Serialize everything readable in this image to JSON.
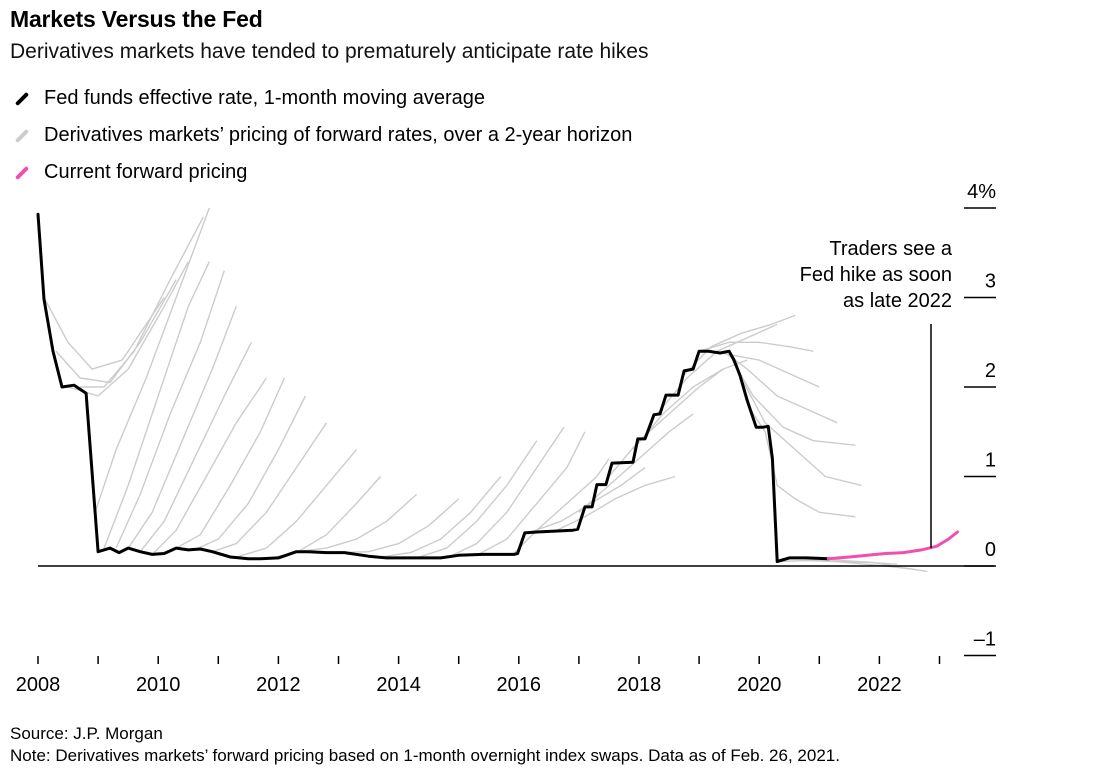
{
  "header": {
    "title": "Markets Versus the Fed",
    "subtitle": "Derivatives markets have tended to prematurely anticipate rate hikes"
  },
  "legend": [
    {
      "label": "Fed funds effective rate, 1-month moving average",
      "color": "#000000"
    },
    {
      "label": "Derivatives markets’ pricing of forward rates, over a 2-year horizon",
      "color": "#cccccc"
    },
    {
      "label": "Current forward pricing",
      "color": "#f04fb0"
    }
  ],
  "annotation": {
    "lines": [
      "Traders see a",
      "Fed hike as soon",
      "as late 2022"
    ]
  },
  "footer": {
    "source": "Source: J.P. Morgan",
    "note": "Note: Derivatives markets’ forward pricing based on 1-month overnight index swaps. Data as of Feb. 26, 2021."
  },
  "chart_data": {
    "type": "line",
    "title": "Markets Versus the Fed",
    "subtitle": "Derivatives markets have tended to prematurely anticipate rate hikes",
    "xlabel": "",
    "ylabel": "",
    "xlim": [
      2008.0,
      2023.9
    ],
    "ylim": [
      -1,
      4
    ],
    "y_ticks": [
      4,
      3,
      2,
      1,
      0,
      -1
    ],
    "y_tick_labels": [
      "4%",
      "3",
      "2",
      "1",
      "0",
      "–1"
    ],
    "x_tick_labels": [
      "2008",
      "2010",
      "2012",
      "2014",
      "2016",
      "2018",
      "2020",
      "2022"
    ],
    "x_tick_values": [
      2008,
      2010,
      2012,
      2014,
      2016,
      2018,
      2020,
      2022
    ],
    "grid": false,
    "legend_position": "top-left",
    "colors": {
      "fed": "#000000",
      "forward": "#cccccc",
      "current": "#f04fb0"
    },
    "series": [
      {
        "name": "Fed funds effective rate, 1-month moving average",
        "x": [
          2008.0,
          2008.1,
          2008.25,
          2008.4,
          2008.6,
          2008.8,
          2008.95,
          2009.0,
          2009.2,
          2009.35,
          2009.5,
          2009.7,
          2009.9,
          2010.1,
          2010.3,
          2010.5,
          2010.7,
          2010.9,
          2011.2,
          2011.5,
          2011.7,
          2012.0,
          2012.3,
          2012.5,
          2012.8,
          2013.1,
          2013.5,
          2013.8,
          2014.1,
          2014.4,
          2014.7,
          2015.0,
          2015.4,
          2015.7,
          2015.92,
          2015.98,
          2016.1,
          2016.3,
          2016.6,
          2016.9,
          2016.98,
          2017.1,
          2017.22,
          2017.3,
          2017.45,
          2017.55,
          2017.9,
          2017.98,
          2018.1,
          2018.25,
          2018.35,
          2018.45,
          2018.65,
          2018.75,
          2018.9,
          2019.0,
          2019.15,
          2019.35,
          2019.5,
          2019.58,
          2019.68,
          2019.8,
          2019.95,
          2020.05,
          2020.15,
          2020.22,
          2020.3,
          2020.5,
          2020.8,
          2021.15
        ],
        "values": [
          3.93,
          2.98,
          2.4,
          2.0,
          2.02,
          1.93,
          0.6,
          0.16,
          0.2,
          0.15,
          0.2,
          0.16,
          0.13,
          0.14,
          0.2,
          0.18,
          0.19,
          0.16,
          0.1,
          0.08,
          0.08,
          0.09,
          0.16,
          0.16,
          0.15,
          0.15,
          0.11,
          0.09,
          0.09,
          0.09,
          0.09,
          0.12,
          0.13,
          0.13,
          0.13,
          0.14,
          0.37,
          0.38,
          0.39,
          0.4,
          0.41,
          0.66,
          0.66,
          0.91,
          0.91,
          1.15,
          1.16,
          1.42,
          1.42,
          1.69,
          1.7,
          1.91,
          1.91,
          2.18,
          2.2,
          2.4,
          2.4,
          2.38,
          2.4,
          2.3,
          2.13,
          1.85,
          1.55,
          1.55,
          1.56,
          1.2,
          0.05,
          0.09,
          0.09,
          0.08
        ]
      },
      {
        "name": "Current forward pricing",
        "x": [
          2021.15,
          2021.5,
          2021.8,
          2022.1,
          2022.4,
          2022.7,
          2022.95,
          2023.15,
          2023.3
        ],
        "values": [
          0.08,
          0.1,
          0.12,
          0.14,
          0.15,
          0.18,
          0.22,
          0.3,
          0.38
        ]
      }
    ],
    "forward_curves": [
      {
        "start": 2008.1,
        "x": [
          2008.1,
          2008.5,
          2008.9,
          2009.4,
          2009.9,
          2010.1
        ],
        "values": [
          3.0,
          2.5,
          2.2,
          2.3,
          2.8,
          3.0
        ]
      },
      {
        "start": 2008.3,
        "x": [
          2008.3,
          2008.7,
          2009.2,
          2009.7,
          2010.3
        ],
        "values": [
          2.4,
          2.1,
          2.05,
          2.5,
          3.2
        ]
      },
      {
        "start": 2008.5,
        "x": [
          2008.5,
          2009.0,
          2009.5,
          2010.1,
          2010.5
        ],
        "values": [
          2.0,
          1.9,
          2.2,
          2.9,
          3.4
        ]
      },
      {
        "start": 2008.7,
        "x": [
          2008.7,
          2009.1,
          2009.6,
          2010.2,
          2010.75
        ],
        "values": [
          2.0,
          2.0,
          2.4,
          3.2,
          3.9
        ]
      },
      {
        "start": 2008.95,
        "x": [
          2008.95,
          2009.3,
          2009.8,
          2010.3,
          2010.85
        ],
        "values": [
          0.6,
          1.3,
          2.1,
          3.0,
          4.0
        ]
      },
      {
        "start": 2009.1,
        "x": [
          2009.1,
          2009.5,
          2010.0,
          2010.5,
          2010.85
        ],
        "values": [
          0.2,
          0.9,
          1.9,
          2.9,
          3.4
        ]
      },
      {
        "start": 2009.3,
        "x": [
          2009.3,
          2009.7,
          2010.2,
          2010.7,
          2011.1
        ],
        "values": [
          0.2,
          0.8,
          1.7,
          2.5,
          3.3
        ]
      },
      {
        "start": 2009.5,
        "x": [
          2009.5,
          2009.9,
          2010.4,
          2010.9,
          2011.3
        ],
        "values": [
          0.2,
          0.6,
          1.4,
          2.2,
          2.9
        ]
      },
      {
        "start": 2009.7,
        "x": [
          2009.7,
          2010.1,
          2010.6,
          2011.1,
          2011.55
        ],
        "values": [
          0.16,
          0.5,
          1.2,
          1.9,
          2.5
        ]
      },
      {
        "start": 2009.9,
        "x": [
          2009.9,
          2010.3,
          2010.8,
          2011.3,
          2011.8
        ],
        "values": [
          0.13,
          0.4,
          1.0,
          1.6,
          2.1
        ]
      },
      {
        "start": 2010.3,
        "x": [
          2010.3,
          2010.7,
          2011.2,
          2011.7,
          2012.1
        ],
        "values": [
          0.2,
          0.35,
          0.9,
          1.5,
          2.1
        ]
      },
      {
        "start": 2010.6,
        "x": [
          2010.6,
          2011.0,
          2011.5,
          2012.0,
          2012.45
        ],
        "values": [
          0.18,
          0.3,
          0.7,
          1.3,
          1.9
        ]
      },
      {
        "start": 2010.9,
        "x": [
          2010.9,
          2011.3,
          2011.8,
          2012.3,
          2012.8
        ],
        "values": [
          0.16,
          0.25,
          0.6,
          1.1,
          1.6
        ]
      },
      {
        "start": 2011.3,
        "x": [
          2011.3,
          2011.8,
          2012.3,
          2012.8,
          2013.3
        ],
        "values": [
          0.1,
          0.2,
          0.5,
          0.9,
          1.3
        ]
      },
      {
        "start": 2011.8,
        "x": [
          2011.8,
          2012.3,
          2012.8,
          2013.3,
          2013.7
        ],
        "values": [
          0.08,
          0.15,
          0.35,
          0.7,
          1.0
        ]
      },
      {
        "start": 2012.3,
        "x": [
          2012.3,
          2012.8,
          2013.3,
          2013.8,
          2014.3
        ],
        "values": [
          0.16,
          0.2,
          0.3,
          0.5,
          0.8
        ]
      },
      {
        "start": 2013.0,
        "x": [
          2013.0,
          2013.5,
          2014.0,
          2014.5,
          2015.0
        ],
        "values": [
          0.15,
          0.16,
          0.25,
          0.45,
          0.75
        ]
      },
      {
        "start": 2013.7,
        "x": [
          2013.7,
          2014.2,
          2014.7,
          2015.2,
          2015.7
        ],
        "values": [
          0.1,
          0.15,
          0.3,
          0.6,
          1.0
        ]
      },
      {
        "start": 2014.3,
        "x": [
          2014.3,
          2014.8,
          2015.3,
          2015.8,
          2016.3
        ],
        "values": [
          0.09,
          0.2,
          0.5,
          0.9,
          1.4
        ]
      },
      {
        "start": 2014.8,
        "x": [
          2014.8,
          2015.3,
          2015.8,
          2016.3,
          2016.75
        ],
        "values": [
          0.09,
          0.25,
          0.6,
          1.1,
          1.55
        ]
      },
      {
        "start": 2015.3,
        "x": [
          2015.3,
          2015.8,
          2016.3,
          2016.8,
          2017.1
        ],
        "values": [
          0.12,
          0.3,
          0.7,
          1.1,
          1.5
        ]
      },
      {
        "start": 2015.9,
        "x": [
          2015.9,
          2016.3,
          2016.8,
          2017.3,
          2017.5
        ],
        "values": [
          0.13,
          0.4,
          0.7,
          1.0,
          1.2
        ]
      },
      {
        "start": 2016.2,
        "x": [
          2016.2,
          2016.7,
          2017.2,
          2017.7,
          2018.1
        ],
        "values": [
          0.38,
          0.5,
          0.7,
          0.9,
          1.1
        ]
      },
      {
        "start": 2016.6,
        "x": [
          2016.6,
          2017.1,
          2017.6,
          2018.1,
          2018.6
        ],
        "values": [
          0.39,
          0.55,
          0.75,
          0.9,
          1.0
        ]
      },
      {
        "start": 2017.0,
        "x": [
          2017.0,
          2017.5,
          2018.0,
          2018.5,
          2018.9
        ],
        "values": [
          0.6,
          0.9,
          1.2,
          1.5,
          1.7
        ]
      },
      {
        "start": 2017.5,
        "x": [
          2017.5,
          2018.0,
          2018.5,
          2019.0,
          2019.4
        ],
        "values": [
          1.0,
          1.4,
          1.7,
          2.0,
          2.2
        ]
      },
      {
        "start": 2017.9,
        "x": [
          2017.9,
          2018.4,
          2018.9,
          2019.4,
          2019.8
        ],
        "values": [
          1.3,
          1.7,
          2.0,
          2.2,
          2.3
        ]
      },
      {
        "start": 2018.3,
        "x": [
          2018.3,
          2018.8,
          2019.3,
          2019.8,
          2020.3
        ],
        "values": [
          1.7,
          2.1,
          2.4,
          2.55,
          2.7
        ]
      },
      {
        "start": 2018.7,
        "x": [
          2018.7,
          2019.2,
          2019.7,
          2020.2,
          2020.6
        ],
        "values": [
          2.1,
          2.45,
          2.6,
          2.7,
          2.8
        ]
      },
      {
        "start": 2019.0,
        "x": [
          2019.0,
          2019.5,
          2020.0,
          2020.5,
          2020.9
        ],
        "values": [
          2.4,
          2.5,
          2.5,
          2.45,
          2.4
        ]
      },
      {
        "start": 2019.2,
        "x": [
          2019.2,
          2019.6,
          2020.0,
          2020.5,
          2021.0
        ],
        "values": [
          2.4,
          2.35,
          2.3,
          2.15,
          2.0
        ]
      },
      {
        "start": 2019.4,
        "x": [
          2019.4,
          2019.8,
          2020.3,
          2020.8,
          2021.3
        ],
        "values": [
          2.4,
          2.2,
          1.9,
          1.75,
          1.6
        ]
      },
      {
        "start": 2019.55,
        "x": [
          2019.55,
          2019.9,
          2020.4,
          2020.9,
          2021.6
        ],
        "values": [
          2.3,
          1.9,
          1.55,
          1.4,
          1.35
        ]
      },
      {
        "start": 2019.7,
        "x": [
          2019.7,
          2020.1,
          2020.6,
          2021.1,
          2021.7
        ],
        "values": [
          2.1,
          1.6,
          1.3,
          1.0,
          0.9
        ]
      },
      {
        "start": 2019.85,
        "x": [
          2019.85,
          2020.1,
          2020.3,
          2020.6,
          2021.0,
          2021.6
        ],
        "values": [
          1.75,
          1.5,
          0.9,
          0.75,
          0.6,
          0.55
        ]
      },
      {
        "start": 2020.3,
        "x": [
          2020.3,
          2020.8,
          2021.3,
          2021.8,
          2022.3
        ],
        "values": [
          0.05,
          0.06,
          0.05,
          0.04,
          0.02
        ]
      },
      {
        "start": 2020.6,
        "x": [
          2020.6,
          2021.1,
          2021.6,
          2022.1,
          2022.6
        ],
        "values": [
          0.09,
          0.06,
          0.03,
          0.0,
          -0.04
        ]
      },
      {
        "start": 2020.9,
        "x": [
          2020.9,
          2021.4,
          2021.9,
          2022.4,
          2022.8
        ],
        "values": [
          0.09,
          0.06,
          0.04,
          -0.02,
          -0.06
        ]
      }
    ]
  }
}
